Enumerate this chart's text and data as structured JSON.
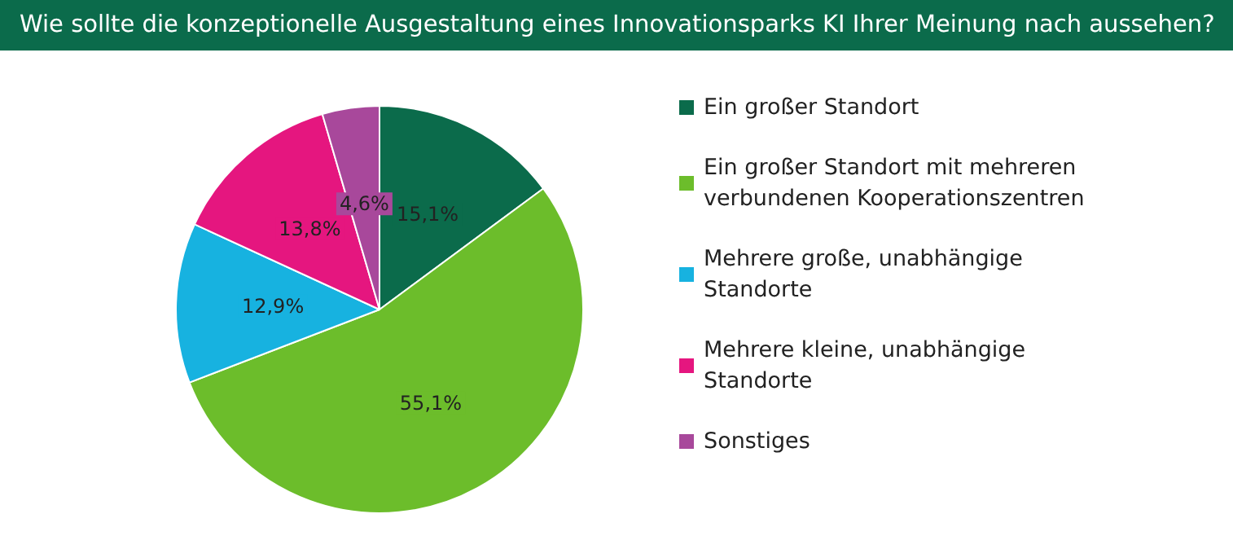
{
  "chart_data": {
    "type": "pie",
    "title": "Wie sollte die konzeptionelle Ausgestaltung eines Innovationsparks KI Ihrer Meinung nach aussehen?",
    "categories": [
      "Ein großer Standort",
      "Ein großer Standort mit mehreren verbundenen Kooperationszentren",
      "Mehrere große, unabhängige Standorte",
      "Mehrere kleine, unabhängige Standorte",
      "Sonstiges"
    ],
    "values": [
      15.1,
      55.1,
      12.9,
      13.8,
      4.6
    ],
    "value_labels": [
      "15,1%",
      "55,1%",
      "12,9%",
      "13,8%",
      "4,6%"
    ],
    "colors": [
      "#0b6b4b",
      "#6cbd2b",
      "#17b2e0",
      "#e5167f",
      "#a8489b"
    ],
    "legend": "right"
  }
}
